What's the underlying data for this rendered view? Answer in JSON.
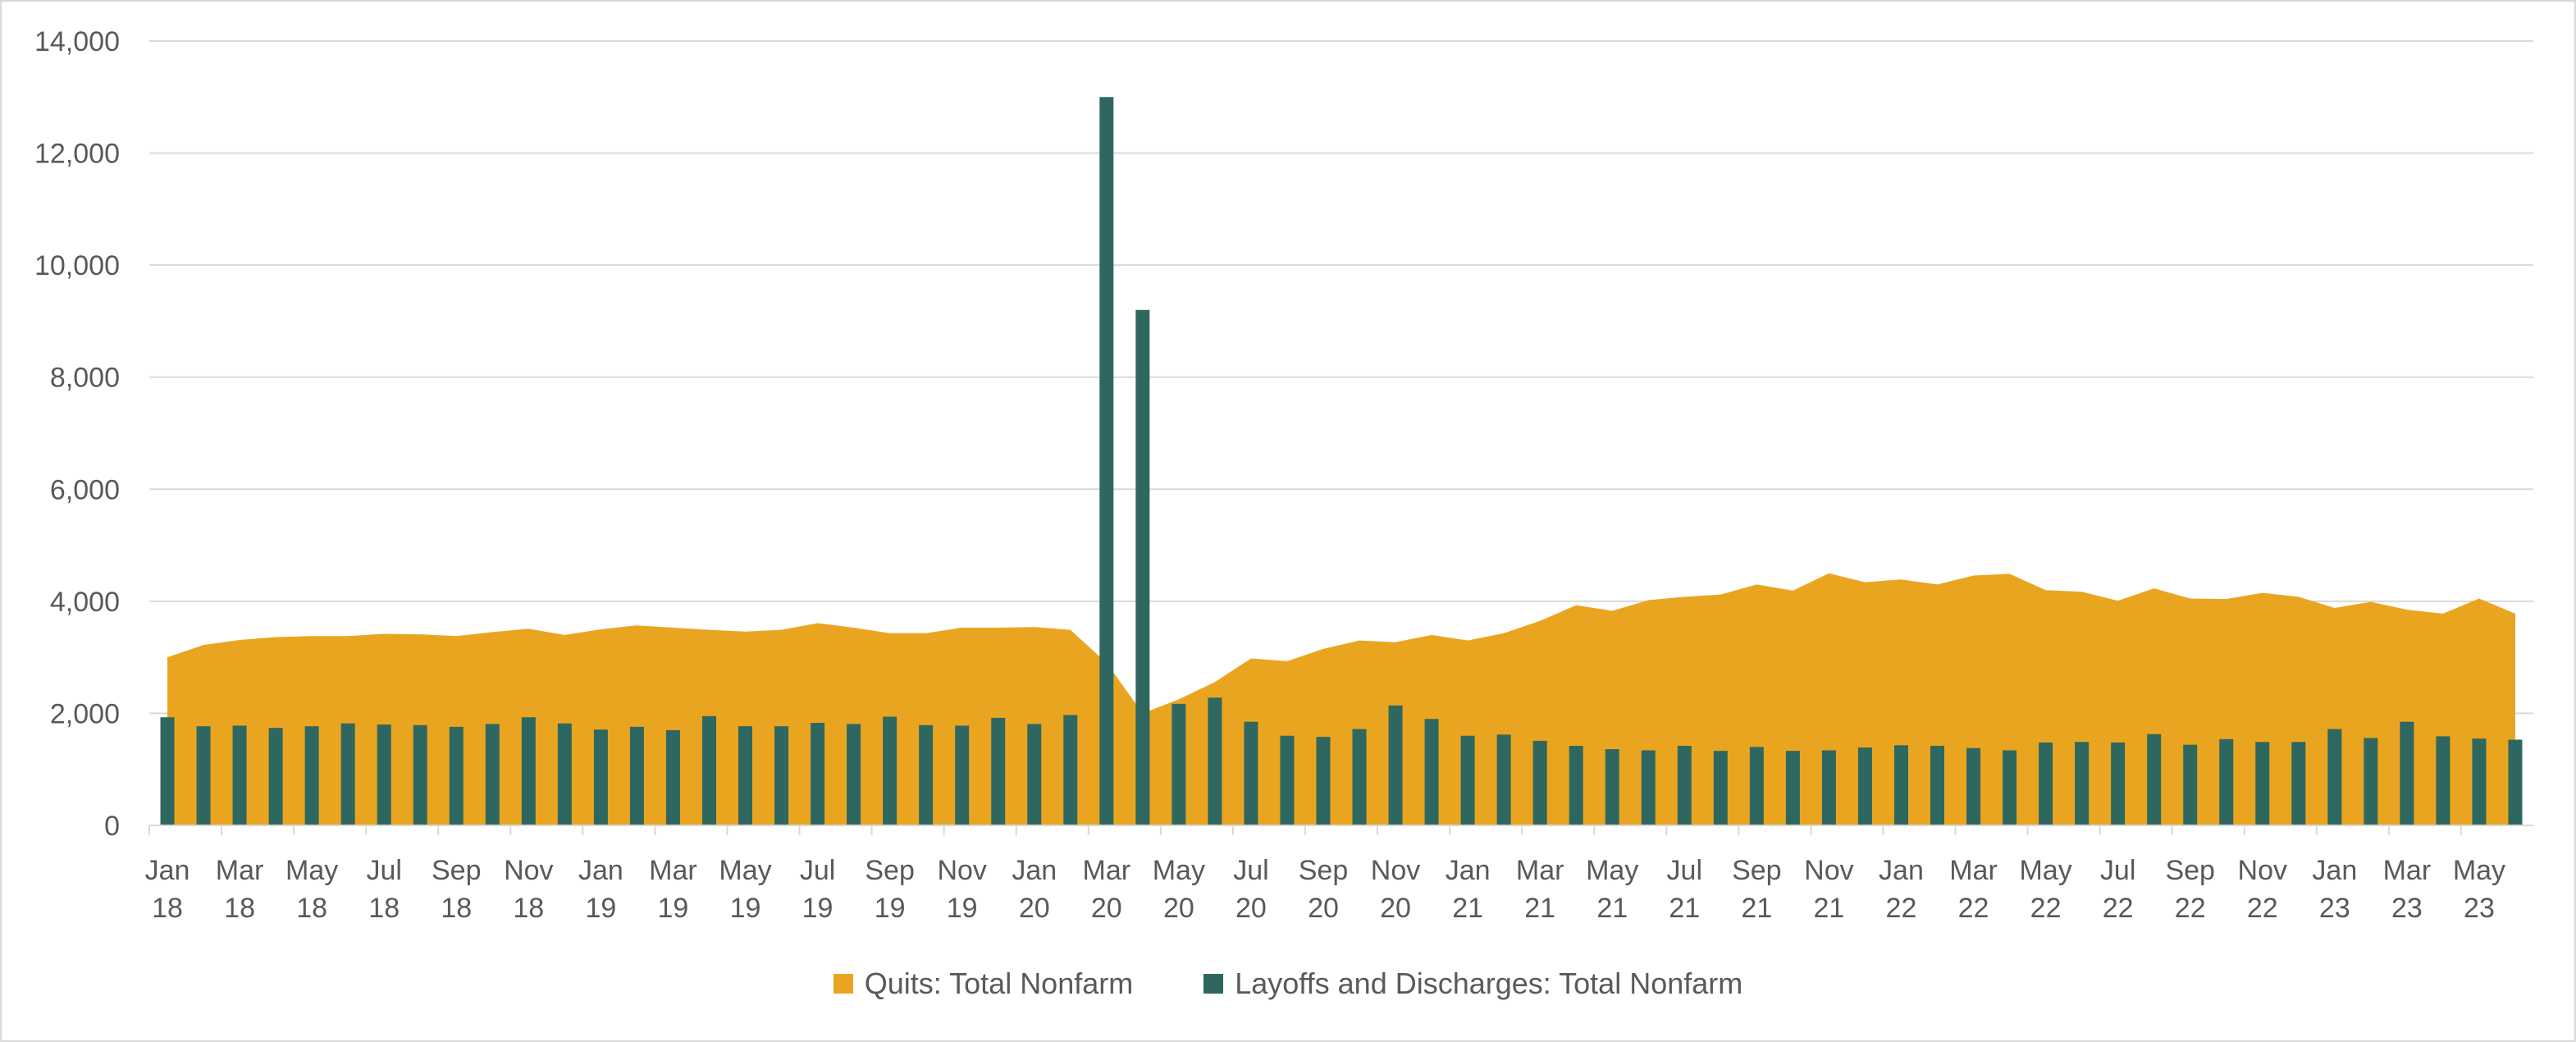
{
  "chart_data": {
    "type": "bar",
    "title": "",
    "xlabel": "",
    "ylabel": "",
    "ylim": [
      0,
      14000
    ],
    "yticks": [
      "0",
      "2,000",
      "4,000",
      "6,000",
      "8,000",
      "10,000",
      "12,000",
      "14,000"
    ],
    "grid": true,
    "legend_position": "bottom",
    "x_tick_labels": [
      [
        "Jan",
        "18"
      ],
      [
        "Mar",
        "18"
      ],
      [
        "May",
        "18"
      ],
      [
        "Jul",
        "18"
      ],
      [
        "Sep",
        "18"
      ],
      [
        "Nov",
        "18"
      ],
      [
        "Jan",
        "19"
      ],
      [
        "Mar",
        "19"
      ],
      [
        "May",
        "19"
      ],
      [
        "Jul",
        "19"
      ],
      [
        "Sep",
        "19"
      ],
      [
        "Nov",
        "19"
      ],
      [
        "Jan",
        "20"
      ],
      [
        "Mar",
        "20"
      ],
      [
        "May",
        "20"
      ],
      [
        "Jul",
        "20"
      ],
      [
        "Sep",
        "20"
      ],
      [
        "Nov",
        "20"
      ],
      [
        "Jan",
        "21"
      ],
      [
        "Mar",
        "21"
      ],
      [
        "May",
        "21"
      ],
      [
        "Jul",
        "21"
      ],
      [
        "Sep",
        "21"
      ],
      [
        "Nov",
        "21"
      ],
      [
        "Jan",
        "22"
      ],
      [
        "Mar",
        "22"
      ],
      [
        "May",
        "22"
      ],
      [
        "Jul",
        "22"
      ],
      [
        "Sep",
        "22"
      ],
      [
        "Nov",
        "22"
      ],
      [
        "Jan",
        "23"
      ],
      [
        "Mar",
        "23"
      ],
      [
        "May",
        "23"
      ]
    ],
    "x": [
      "2018-01",
      "2018-02",
      "2018-03",
      "2018-04",
      "2018-05",
      "2018-06",
      "2018-07",
      "2018-08",
      "2018-09",
      "2018-10",
      "2018-11",
      "2018-12",
      "2019-01",
      "2019-02",
      "2019-03",
      "2019-04",
      "2019-05",
      "2019-06",
      "2019-07",
      "2019-08",
      "2019-09",
      "2019-10",
      "2019-11",
      "2019-12",
      "2020-01",
      "2020-02",
      "2020-03",
      "2020-04",
      "2020-05",
      "2020-06",
      "2020-07",
      "2020-08",
      "2020-09",
      "2020-10",
      "2020-11",
      "2020-12",
      "2021-01",
      "2021-02",
      "2021-03",
      "2021-04",
      "2021-05",
      "2021-06",
      "2021-07",
      "2021-08",
      "2021-09",
      "2021-10",
      "2021-11",
      "2021-12",
      "2022-01",
      "2022-02",
      "2022-03",
      "2022-04",
      "2022-05",
      "2022-06",
      "2022-07",
      "2022-08",
      "2022-09",
      "2022-10",
      "2022-11",
      "2022-12",
      "2023-01",
      "2023-02",
      "2023-03",
      "2023-04",
      "2023-05",
      "2023-06"
    ],
    "series": [
      {
        "name": "Quits: Total Nonfarm",
        "type": "area",
        "color": "#EAA520",
        "values": [
          3000,
          3220,
          3310,
          3360,
          3380,
          3380,
          3420,
          3410,
          3380,
          3450,
          3510,
          3400,
          3500,
          3570,
          3530,
          3490,
          3460,
          3490,
          3610,
          3530,
          3430,
          3430,
          3530,
          3530,
          3540,
          3490,
          2900,
          2000,
          2250,
          2560,
          2980,
          2930,
          3150,
          3300,
          3270,
          3400,
          3300,
          3430,
          3650,
          3930,
          3830,
          4020,
          4080,
          4120,
          4300,
          4190,
          4500,
          4340,
          4390,
          4300,
          4460,
          4490,
          4200,
          4170,
          4010,
          4230,
          4050,
          4040,
          4150,
          4080,
          3880,
          3990,
          3850,
          3780,
          4050,
          3780
        ]
      },
      {
        "name": "Layoffs and Discharges: Total Nonfarm",
        "type": "bar",
        "color": "#2E675F",
        "values": [
          1930,
          1770,
          1780,
          1740,
          1770,
          1820,
          1800,
          1790,
          1760,
          1810,
          1930,
          1820,
          1710,
          1760,
          1700,
          1950,
          1770,
          1770,
          1830,
          1810,
          1940,
          1790,
          1780,
          1920,
          1810,
          1970,
          13000,
          9200,
          2170,
          2280,
          1850,
          1600,
          1580,
          1720,
          2140,
          1900,
          1600,
          1620,
          1510,
          1420,
          1360,
          1340,
          1420,
          1330,
          1400,
          1330,
          1340,
          1390,
          1430,
          1420,
          1380,
          1340,
          1480,
          1490,
          1480,
          1630,
          1440,
          1540,
          1490,
          1490,
          1720,
          1560,
          1850,
          1590,
          1550,
          1530
        ]
      }
    ]
  }
}
